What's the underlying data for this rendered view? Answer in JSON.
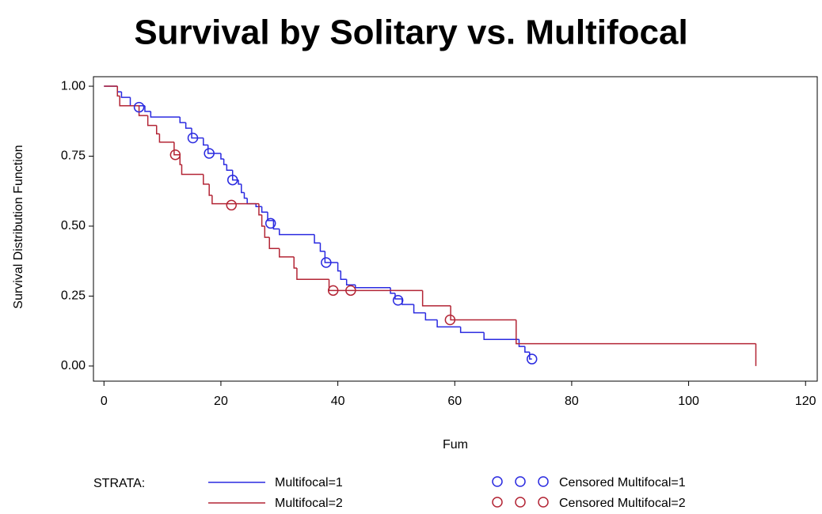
{
  "chart_data": {
    "type": "step",
    "title": "Survival by Solitary vs. Multifocal",
    "x_label": "Fum",
    "y_label": "Survival Distribution Function",
    "legend_title": "STRATA:",
    "xlim": [
      -1.8,
      122
    ],
    "ylim": [
      -0.054,
      1.034
    ],
    "xticks": [
      0,
      20,
      40,
      60,
      80,
      100,
      120
    ],
    "yticks": [
      {
        "value": 0,
        "label": "0.00"
      },
      {
        "value": 0.25,
        "label": "0.25"
      },
      {
        "value": 0.5,
        "label": "0.50"
      },
      {
        "value": 0.75,
        "label": "0.75"
      },
      {
        "value": 1,
        "label": "1.00"
      }
    ],
    "series": [
      {
        "name": "Multifocal=1",
        "color": "#2a2ae0",
        "x": [
          0,
          2.3,
          3,
          4.5,
          7,
          8,
          13,
          14,
          15,
          17,
          17.8,
          20,
          20.5,
          21,
          22,
          23,
          23.5,
          24,
          24.5,
          26,
          27,
          28,
          29,
          30,
          36,
          37,
          37.8,
          40,
          40.5,
          41.5,
          43,
          49,
          49.8,
          51,
          53,
          55,
          57,
          61,
          65,
          71,
          72,
          72.8,
          73.2
        ],
        "values": [
          1,
          0.98,
          0.96,
          0.93,
          0.91,
          0.89,
          0.87,
          0.85,
          0.815,
          0.79,
          0.76,
          0.74,
          0.72,
          0.7,
          0.665,
          0.65,
          0.62,
          0.6,
          0.58,
          0.57,
          0.55,
          0.52,
          0.49,
          0.47,
          0.44,
          0.41,
          0.37,
          0.34,
          0.31,
          0.29,
          0.28,
          0.26,
          0.24,
          0.22,
          0.19,
          0.165,
          0.14,
          0.12,
          0.095,
          0.07,
          0.05,
          0.025,
          0.025
        ]
      },
      {
        "name": "Multifocal=2",
        "color": "#b32535",
        "x": [
          0,
          2.3,
          2.7,
          6,
          7.5,
          9,
          9.5,
          12,
          13,
          13.3,
          17,
          18,
          18.5,
          26.5,
          27,
          27.5,
          28.3,
          30,
          32.5,
          33,
          38.5,
          54.5,
          59.3,
          70.5,
          111.5
        ],
        "values": [
          1,
          0.965,
          0.93,
          0.895,
          0.86,
          0.83,
          0.8,
          0.755,
          0.72,
          0.685,
          0.65,
          0.61,
          0.58,
          0.54,
          0.5,
          0.46,
          0.42,
          0.39,
          0.35,
          0.31,
          0.27,
          0.215,
          0.165,
          0.08,
          0
        ]
      }
    ],
    "censored": [
      {
        "name": "Censored Multifocal=1",
        "color": "#2a2ae0",
        "x": [
          6,
          15.2,
          18,
          22,
          28.5,
          38,
          50.3,
          73.2
        ],
        "values": [
          0.925,
          0.815,
          0.76,
          0.665,
          0.51,
          0.37,
          0.235,
          0.025
        ]
      },
      {
        "name": "Censored Multifocal=2",
        "color": "#b32535",
        "x": [
          12.2,
          21.8,
          39.2,
          42.2,
          59.2
        ],
        "values": [
          0.755,
          0.575,
          0.27,
          0.27,
          0.165
        ]
      }
    ]
  }
}
